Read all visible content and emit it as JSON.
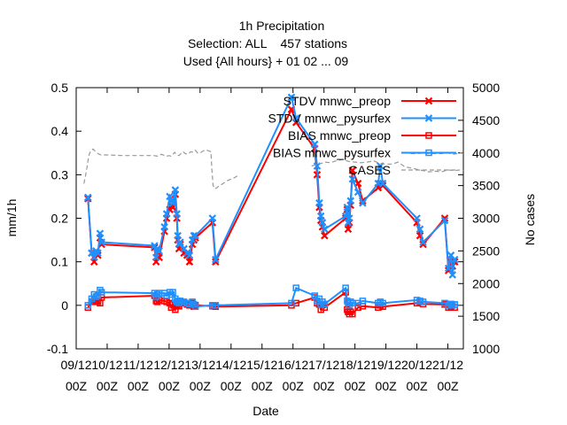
{
  "chart_data": {
    "type": "line",
    "title_lines": [
      "1h Precipitation",
      "Selection: ALL    457 stations",
      "Used {All hours} + 01 02 ... 09"
    ],
    "xlabel": "Date",
    "ylabel": "mm/1h",
    "y2label": "No cases",
    "ylim": [
      -0.1,
      0.5
    ],
    "y2lim": [
      1000,
      5000
    ],
    "xlim": [
      0,
      12.5
    ],
    "yticks": [
      "-0.1",
      "0",
      "0.1",
      "0.2",
      "0.3",
      "0.4",
      "0.5"
    ],
    "y2ticks": [
      "1000",
      "1500",
      "2000",
      "2500",
      "3000",
      "3500",
      "4000",
      "4500",
      "5000"
    ],
    "xticks": [
      {
        "x": 0,
        "label": "09/12",
        "sub": "00Z"
      },
      {
        "x": 1,
        "label": "10/12",
        "sub": "00Z"
      },
      {
        "x": 2,
        "label": "11/12",
        "sub": "00Z"
      },
      {
        "x": 3,
        "label": "12/12",
        "sub": "00Z"
      },
      {
        "x": 4,
        "label": "13/12",
        "sub": "00Z"
      },
      {
        "x": 5,
        "label": "14/12",
        "sub": "00Z"
      },
      {
        "x": 6,
        "label": "15/12",
        "sub": "00Z"
      },
      {
        "x": 7,
        "label": "16/12",
        "sub": "00Z"
      },
      {
        "x": 8,
        "label": "17/12",
        "sub": "00Z"
      },
      {
        "x": 9,
        "label": "18/12",
        "sub": "00Z"
      },
      {
        "x": 10,
        "label": "19/12",
        "sub": "00Z"
      },
      {
        "x": 11,
        "label": "20/12",
        "sub": "00Z"
      },
      {
        "x": 12,
        "label": "21/12",
        "sub": "00Z"
      }
    ],
    "legend_position": "top-right",
    "grid": false,
    "series": [
      {
        "name": "STDV mnwc_preop",
        "color": "#ff0000",
        "marker": "x",
        "axis": "y",
        "x": [
          0.38,
          0.5,
          0.58,
          0.64,
          0.7,
          0.77,
          0.82,
          2.53,
          2.58,
          2.62,
          2.68,
          2.85,
          2.92,
          3.02,
          3.07,
          3.12,
          3.2,
          3.25,
          3.28,
          3.32,
          3.36,
          3.48,
          3.58,
          3.66,
          3.75,
          3.8,
          3.85,
          4.4,
          4.5,
          6.95,
          7.1,
          7.7,
          7.78,
          7.85,
          7.9,
          7.95,
          8.02,
          8.7,
          8.75,
          8.78,
          8.82,
          8.86,
          8.92,
          9.1,
          9.25,
          9.75,
          9.82,
          9.9,
          11.0,
          11.1,
          11.2,
          11.9,
          12.02,
          12.1,
          12.15,
          12.22
        ],
        "y": [
          0.245,
          0.12,
          0.1,
          0.12,
          0.115,
          0.155,
          0.14,
          0.133,
          0.1,
          0.12,
          0.11,
          0.17,
          0.2,
          0.22,
          0.23,
          0.225,
          0.255,
          0.2,
          0.15,
          0.13,
          0.14,
          0.12,
          0.115,
          0.1,
          0.14,
          0.15,
          0.155,
          0.19,
          0.1,
          0.45,
          0.42,
          0.36,
          0.3,
          0.225,
          0.195,
          0.18,
          0.16,
          0.2,
          0.22,
          0.175,
          0.19,
          0.23,
          0.31,
          0.28,
          0.24,
          0.27,
          0.28,
          0.275,
          0.19,
          0.16,
          0.14,
          0.2,
          0.08,
          0.1,
          0.09,
          0.1
        ]
      },
      {
        "name": "STDV mnwc_pysurfex",
        "color": "#1e90ff",
        "marker": "x",
        "axis": "y",
        "x": [
          0.38,
          0.5,
          0.58,
          0.64,
          0.7,
          0.77,
          0.82,
          2.53,
          2.58,
          2.62,
          2.68,
          2.85,
          2.92,
          3.02,
          3.07,
          3.12,
          3.2,
          3.25,
          3.28,
          3.32,
          3.36,
          3.48,
          3.58,
          3.66,
          3.75,
          3.8,
          3.85,
          4.4,
          4.5,
          6.95,
          7.1,
          7.7,
          7.78,
          7.85,
          7.9,
          7.95,
          8.02,
          8.7,
          8.75,
          8.78,
          8.82,
          8.86,
          8.92,
          9.1,
          9.25,
          9.75,
          9.82,
          9.9,
          11.0,
          11.1,
          11.2,
          11.9,
          12.02,
          12.1,
          12.15,
          12.22
        ],
        "y": [
          0.248,
          0.12,
          0.11,
          0.125,
          0.12,
          0.165,
          0.145,
          0.137,
          0.11,
          0.13,
          0.125,
          0.18,
          0.21,
          0.25,
          0.24,
          0.235,
          0.265,
          0.21,
          0.16,
          0.14,
          0.145,
          0.13,
          0.12,
          0.115,
          0.15,
          0.16,
          0.16,
          0.2,
          0.105,
          0.478,
          0.43,
          0.37,
          0.32,
          0.235,
          0.205,
          0.19,
          0.175,
          0.205,
          0.225,
          0.19,
          0.2,
          0.24,
          0.29,
          0.26,
          0.235,
          0.28,
          0.32,
          0.28,
          0.2,
          0.175,
          0.145,
          0.195,
          0.085,
          0.115,
          0.07,
          0.105
        ]
      },
      {
        "name": "BIAS mnwc_preop",
        "color": "#ff0000",
        "marker": "square",
        "axis": "y",
        "x": [
          0.38,
          0.5,
          0.58,
          0.64,
          0.7,
          0.77,
          0.82,
          2.53,
          2.58,
          2.62,
          2.68,
          2.85,
          2.92,
          3.02,
          3.07,
          3.12,
          3.2,
          3.25,
          3.28,
          3.32,
          3.36,
          3.48,
          3.58,
          3.66,
          3.75,
          3.8,
          3.85,
          4.4,
          4.5,
          6.95,
          7.1,
          7.7,
          7.78,
          7.85,
          7.9,
          7.95,
          8.02,
          8.7,
          8.75,
          8.78,
          8.82,
          8.86,
          8.92,
          9.1,
          9.25,
          9.75,
          9.82,
          9.9,
          11.0,
          11.1,
          11.2,
          11.9,
          12.02,
          12.1,
          12.15,
          12.22
        ],
        "y": [
          -0.005,
          0.008,
          0.012,
          0.01,
          0.008,
          0.005,
          0.018,
          0.022,
          0.01,
          0.008,
          0.012,
          0.01,
          0.008,
          0.005,
          -0.005,
          0.002,
          -0.01,
          0.0,
          0.002,
          -0.002,
          0.005,
          0.005,
          0.002,
          0.0,
          0.005,
          -0.003,
          0.0,
          -0.002,
          -0.003,
          0.0,
          0.005,
          0.018,
          0.005,
          0.002,
          -0.01,
          0.002,
          -0.005,
          0.03,
          -0.01,
          -0.015,
          -0.02,
          -0.015,
          -0.02,
          -0.005,
          -0.002,
          -0.005,
          0.0,
          -0.003,
          0.005,
          0.008,
          0.003,
          0.002,
          -0.005,
          -0.002,
          0.0,
          -0.005
        ]
      },
      {
        "name": "BIAS mnwc_pysurfex",
        "color": "#1e90ff",
        "marker": "square",
        "axis": "y",
        "x": [
          0.38,
          0.5,
          0.58,
          0.64,
          0.7,
          0.77,
          0.82,
          2.53,
          2.58,
          2.62,
          2.68,
          2.85,
          2.92,
          3.02,
          3.07,
          3.12,
          3.2,
          3.25,
          3.28,
          3.32,
          3.36,
          3.48,
          3.58,
          3.66,
          3.75,
          3.8,
          3.85,
          4.4,
          4.5,
          6.95,
          7.1,
          7.7,
          7.78,
          7.85,
          7.9,
          7.95,
          8.02,
          8.7,
          8.75,
          8.78,
          8.82,
          8.86,
          8.92,
          9.1,
          9.25,
          9.75,
          9.82,
          9.9,
          11.0,
          11.1,
          11.2,
          11.9,
          12.02,
          12.1,
          12.15,
          12.22
        ],
        "y": [
          0.0,
          0.015,
          0.025,
          0.02,
          0.022,
          0.035,
          0.03,
          0.028,
          0.02,
          0.025,
          0.028,
          0.028,
          0.022,
          0.03,
          0.025,
          0.03,
          0.015,
          0.008,
          0.01,
          0.005,
          0.01,
          0.008,
          0.005,
          0.003,
          0.008,
          0.002,
          -0.003,
          0.0,
          0.0,
          0.005,
          0.04,
          0.022,
          0.01,
          0.015,
          0.002,
          0.008,
          0.003,
          0.04,
          0.01,
          0.005,
          0.0,
          0.008,
          0.005,
          0.005,
          0.01,
          0.005,
          0.008,
          0.005,
          0.012,
          0.01,
          0.008,
          0.005,
          0.0,
          0.003,
          0.0,
          0.002
        ]
      },
      {
        "name": "CASES",
        "color": "#999999",
        "marker": "none",
        "dash": true,
        "axis": "y2",
        "x": [
          0.25,
          0.3,
          0.35,
          0.38,
          0.42,
          0.48,
          0.55,
          0.62,
          0.7,
          0.8,
          0.9,
          1.0,
          1.5,
          2.0,
          2.5,
          2.62,
          2.68,
          2.75,
          2.85,
          2.92,
          3.0,
          3.06,
          3.12,
          3.18,
          3.25,
          3.32,
          3.38,
          3.45,
          3.52,
          3.6,
          3.7,
          3.78,
          3.85,
          3.92,
          4.0,
          4.1,
          4.2,
          4.28,
          4.35,
          4.38,
          4.42,
          4.48,
          4.55,
          4.62,
          4.7,
          4.8,
          4.9,
          5.0,
          5.1,
          5.25
        ],
        "y": [
          3530,
          3650,
          3780,
          3880,
          3980,
          4040,
          4060,
          4020,
          3990,
          3970,
          3970,
          3970,
          3960,
          3960,
          3960,
          3950,
          3960,
          3980,
          3960,
          3950,
          3960,
          3950,
          3980,
          4010,
          3970,
          3960,
          3990,
          4020,
          3990,
          3980,
          4020,
          4010,
          4040,
          4000,
          4000,
          4030,
          4050,
          4030,
          4020,
          3760,
          3500,
          3450,
          3470,
          3500,
          3520,
          3550,
          3580,
          3600,
          3620,
          3660
        ]
      },
      {
        "name": "",
        "color": "#999999",
        "marker": "none",
        "dash": true,
        "axis": "y2",
        "x": [
          7.6,
          7.75,
          7.9,
          8.05,
          8.2,
          8.4,
          8.6,
          8.8,
          9.0,
          9.2,
          9.4,
          9.6,
          9.8,
          10.0,
          10.2,
          10.4,
          10.6,
          10.8,
          11.0,
          11.2,
          11.4,
          11.6,
          11.8,
          12.0,
          12.2,
          12.4,
          12.5
        ],
        "y": [
          3800,
          3820,
          3840,
          3860,
          3850,
          3880,
          3900,
          3870,
          3860,
          3850,
          3860,
          3880,
          3840,
          3830,
          3830,
          3860,
          3790,
          3770,
          3750,
          3730,
          3710,
          3720,
          3710,
          3740,
          3730,
          3740,
          3730
        ]
      },
      {
        "name": "",
        "color": "#999999",
        "marker": "none",
        "dash": true,
        "axis": "y2",
        "x": [
          10.8,
          11.0,
          11.2,
          11.4,
          11.6,
          11.8,
          12.0,
          12.2,
          12.4,
          12.5
        ],
        "y": [
          3990,
          3990,
          4000,
          3990,
          3990,
          3990,
          4000,
          3980,
          4000,
          3990
        ]
      }
    ]
  }
}
